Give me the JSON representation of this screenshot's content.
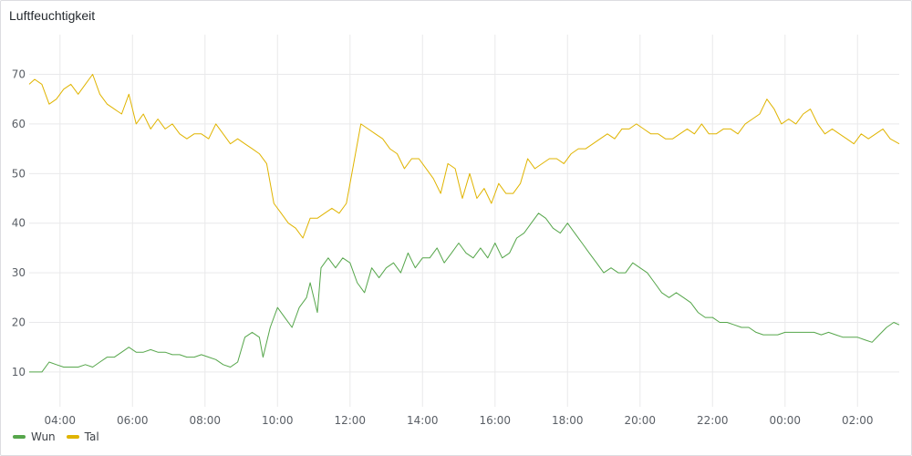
{
  "panel": {
    "title": "Luftfeuchtigkeit"
  },
  "colors": {
    "wun": "#56a64b",
    "tal": "#e0b400",
    "grid": "#e9e9eb"
  },
  "chart_data": {
    "type": "line",
    "title": "Luftfeuchtigkeit",
    "xlabel": "",
    "ylabel": "",
    "x_unit": "hours since 00:00 of first day",
    "xlim": [
      3.15,
      27.15
    ],
    "ylim": [
      3,
      78
    ],
    "y_ticks": [
      10,
      20,
      30,
      40,
      50,
      60,
      70
    ],
    "x_ticks": [
      {
        "x": 4,
        "label": "04:00"
      },
      {
        "x": 6,
        "label": "06:00"
      },
      {
        "x": 8,
        "label": "08:00"
      },
      {
        "x": 10,
        "label": "10:00"
      },
      {
        "x": 12,
        "label": "12:00"
      },
      {
        "x": 14,
        "label": "14:00"
      },
      {
        "x": 16,
        "label": "16:00"
      },
      {
        "x": 18,
        "label": "18:00"
      },
      {
        "x": 20,
        "label": "20:00"
      },
      {
        "x": 22,
        "label": "22:00"
      },
      {
        "x": 24,
        "label": "00:00"
      },
      {
        "x": 26,
        "label": "02:00"
      }
    ],
    "grid": true,
    "legend": "bottom-left",
    "series": [
      {
        "name": "Wun",
        "color": "#56a64b",
        "points": [
          [
            3.15,
            10
          ],
          [
            3.3,
            10
          ],
          [
            3.5,
            10
          ],
          [
            3.7,
            12
          ],
          [
            3.9,
            11.5
          ],
          [
            4.1,
            11
          ],
          [
            4.3,
            11
          ],
          [
            4.5,
            11
          ],
          [
            4.7,
            11.5
          ],
          [
            4.9,
            11
          ],
          [
            5.1,
            12
          ],
          [
            5.3,
            13
          ],
          [
            5.5,
            13
          ],
          [
            5.7,
            14
          ],
          [
            5.9,
            15
          ],
          [
            6.1,
            14
          ],
          [
            6.3,
            14
          ],
          [
            6.5,
            14.5
          ],
          [
            6.7,
            14
          ],
          [
            6.9,
            14
          ],
          [
            7.1,
            13.5
          ],
          [
            7.3,
            13.5
          ],
          [
            7.5,
            13
          ],
          [
            7.7,
            13
          ],
          [
            7.9,
            13.5
          ],
          [
            8.1,
            13
          ],
          [
            8.3,
            12.5
          ],
          [
            8.5,
            11.5
          ],
          [
            8.7,
            11
          ],
          [
            8.9,
            12
          ],
          [
            9.1,
            17
          ],
          [
            9.3,
            18
          ],
          [
            9.5,
            17
          ],
          [
            9.6,
            13
          ],
          [
            9.8,
            19
          ],
          [
            10,
            23
          ],
          [
            10.2,
            21
          ],
          [
            10.4,
            19
          ],
          [
            10.6,
            23
          ],
          [
            10.8,
            25
          ],
          [
            10.9,
            28
          ],
          [
            11.1,
            22
          ],
          [
            11.2,
            31
          ],
          [
            11.4,
            33
          ],
          [
            11.6,
            31
          ],
          [
            11.8,
            33
          ],
          [
            12,
            32
          ],
          [
            12.2,
            28
          ],
          [
            12.4,
            26
          ],
          [
            12.6,
            31
          ],
          [
            12.8,
            29
          ],
          [
            13,
            31
          ],
          [
            13.2,
            32
          ],
          [
            13.4,
            30
          ],
          [
            13.6,
            34
          ],
          [
            13.8,
            31
          ],
          [
            14,
            33
          ],
          [
            14.2,
            33
          ],
          [
            14.4,
            35
          ],
          [
            14.6,
            32
          ],
          [
            14.8,
            34
          ],
          [
            15,
            36
          ],
          [
            15.2,
            34
          ],
          [
            15.4,
            33
          ],
          [
            15.6,
            35
          ],
          [
            15.8,
            33
          ],
          [
            16,
            36
          ],
          [
            16.2,
            33
          ],
          [
            16.4,
            34
          ],
          [
            16.6,
            37
          ],
          [
            16.8,
            38
          ],
          [
            17,
            40
          ],
          [
            17.2,
            42
          ],
          [
            17.4,
            41
          ],
          [
            17.6,
            39
          ],
          [
            17.8,
            38
          ],
          [
            18,
            40
          ],
          [
            18.2,
            38
          ],
          [
            18.4,
            36
          ],
          [
            18.6,
            34
          ],
          [
            18.8,
            32
          ],
          [
            19,
            30
          ],
          [
            19.2,
            31
          ],
          [
            19.4,
            30
          ],
          [
            19.6,
            30
          ],
          [
            19.8,
            32
          ],
          [
            20,
            31
          ],
          [
            20.2,
            30
          ],
          [
            20.4,
            28
          ],
          [
            20.6,
            26
          ],
          [
            20.8,
            25
          ],
          [
            21,
            26
          ],
          [
            21.2,
            25
          ],
          [
            21.4,
            24
          ],
          [
            21.6,
            22
          ],
          [
            21.8,
            21
          ],
          [
            22,
            21
          ],
          [
            22.2,
            20
          ],
          [
            22.4,
            20
          ],
          [
            22.6,
            19.5
          ],
          [
            22.8,
            19
          ],
          [
            23,
            19
          ],
          [
            23.2,
            18
          ],
          [
            23.4,
            17.5
          ],
          [
            23.6,
            17.5
          ],
          [
            23.8,
            17.5
          ],
          [
            24,
            18
          ],
          [
            24.2,
            18
          ],
          [
            24.4,
            18
          ],
          [
            24.6,
            18
          ],
          [
            24.8,
            18
          ],
          [
            25,
            17.5
          ],
          [
            25.2,
            18
          ],
          [
            25.4,
            17.5
          ],
          [
            25.6,
            17
          ],
          [
            25.8,
            17
          ],
          [
            26,
            17
          ],
          [
            26.2,
            16.5
          ],
          [
            26.4,
            16
          ],
          [
            26.6,
            17.5
          ],
          [
            26.8,
            19
          ],
          [
            27,
            20
          ],
          [
            27.15,
            19.5
          ]
        ]
      },
      {
        "name": "Tal",
        "color": "#e0b400",
        "points": [
          [
            3.15,
            68
          ],
          [
            3.3,
            69
          ],
          [
            3.5,
            68
          ],
          [
            3.7,
            64
          ],
          [
            3.9,
            65
          ],
          [
            4.1,
            67
          ],
          [
            4.3,
            68
          ],
          [
            4.5,
            66
          ],
          [
            4.7,
            68
          ],
          [
            4.9,
            70
          ],
          [
            5.1,
            66
          ],
          [
            5.3,
            64
          ],
          [
            5.5,
            63
          ],
          [
            5.7,
            62
          ],
          [
            5.9,
            66
          ],
          [
            6.1,
            60
          ],
          [
            6.3,
            62
          ],
          [
            6.5,
            59
          ],
          [
            6.7,
            61
          ],
          [
            6.9,
            59
          ],
          [
            7.1,
            60
          ],
          [
            7.3,
            58
          ],
          [
            7.5,
            57
          ],
          [
            7.7,
            58
          ],
          [
            7.9,
            58
          ],
          [
            8.1,
            57
          ],
          [
            8.3,
            60
          ],
          [
            8.5,
            58
          ],
          [
            8.7,
            56
          ],
          [
            8.9,
            57
          ],
          [
            9.1,
            56
          ],
          [
            9.3,
            55
          ],
          [
            9.5,
            54
          ],
          [
            9.7,
            52
          ],
          [
            9.9,
            44
          ],
          [
            10.1,
            42
          ],
          [
            10.3,
            40
          ],
          [
            10.5,
            39
          ],
          [
            10.7,
            37
          ],
          [
            10.9,
            41
          ],
          [
            11.1,
            41
          ],
          [
            11.3,
            42
          ],
          [
            11.5,
            43
          ],
          [
            11.7,
            42
          ],
          [
            11.9,
            44
          ],
          [
            12.1,
            52
          ],
          [
            12.3,
            60
          ],
          [
            12.5,
            59
          ],
          [
            12.7,
            58
          ],
          [
            12.9,
            57
          ],
          [
            13.1,
            55
          ],
          [
            13.3,
            54
          ],
          [
            13.5,
            51
          ],
          [
            13.7,
            53
          ],
          [
            13.9,
            53
          ],
          [
            14.1,
            51
          ],
          [
            14.3,
            49
          ],
          [
            14.5,
            46
          ],
          [
            14.7,
            52
          ],
          [
            14.9,
            51
          ],
          [
            15.1,
            45
          ],
          [
            15.3,
            50
          ],
          [
            15.5,
            45
          ],
          [
            15.7,
            47
          ],
          [
            15.9,
            44
          ],
          [
            16.1,
            48
          ],
          [
            16.3,
            46
          ],
          [
            16.5,
            46
          ],
          [
            16.7,
            48
          ],
          [
            16.9,
            53
          ],
          [
            17.1,
            51
          ],
          [
            17.3,
            52
          ],
          [
            17.5,
            53
          ],
          [
            17.7,
            53
          ],
          [
            17.9,
            52
          ],
          [
            18.1,
            54
          ],
          [
            18.3,
            55
          ],
          [
            18.5,
            55
          ],
          [
            18.7,
            56
          ],
          [
            18.9,
            57
          ],
          [
            19.1,
            58
          ],
          [
            19.3,
            57
          ],
          [
            19.5,
            59
          ],
          [
            19.7,
            59
          ],
          [
            19.9,
            60
          ],
          [
            20.1,
            59
          ],
          [
            20.3,
            58
          ],
          [
            20.5,
            58
          ],
          [
            20.7,
            57
          ],
          [
            20.9,
            57
          ],
          [
            21.1,
            58
          ],
          [
            21.3,
            59
          ],
          [
            21.5,
            58
          ],
          [
            21.7,
            60
          ],
          [
            21.9,
            58
          ],
          [
            22.1,
            58
          ],
          [
            22.3,
            59
          ],
          [
            22.5,
            59
          ],
          [
            22.7,
            58
          ],
          [
            22.9,
            60
          ],
          [
            23.1,
            61
          ],
          [
            23.3,
            62
          ],
          [
            23.5,
            65
          ],
          [
            23.7,
            63
          ],
          [
            23.9,
            60
          ],
          [
            24.1,
            61
          ],
          [
            24.3,
            60
          ],
          [
            24.5,
            62
          ],
          [
            24.7,
            63
          ],
          [
            24.9,
            60
          ],
          [
            25.1,
            58
          ],
          [
            25.3,
            59
          ],
          [
            25.5,
            58
          ],
          [
            25.7,
            57
          ],
          [
            25.9,
            56
          ],
          [
            26.1,
            58
          ],
          [
            26.3,
            57
          ],
          [
            26.5,
            58
          ],
          [
            26.7,
            59
          ],
          [
            26.9,
            57
          ],
          [
            27.15,
            56
          ]
        ]
      }
    ]
  }
}
